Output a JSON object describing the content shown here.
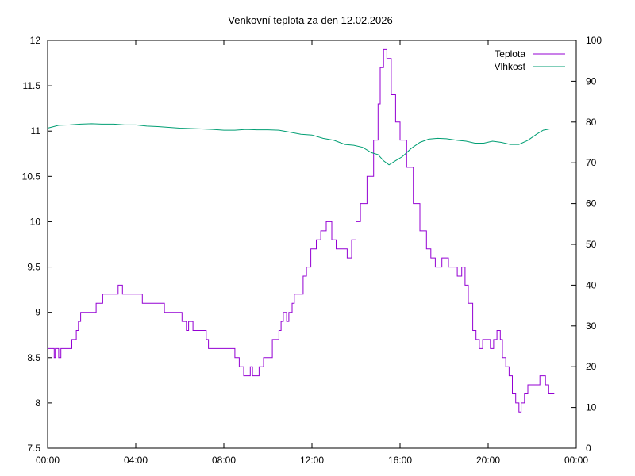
{
  "chart_data": {
    "type": "line",
    "title": "Venkovní teplota za den 12.02.2026",
    "x_axis": {
      "unit": "time of day",
      "range_hours": [
        0,
        24
      ],
      "tick_labels": [
        "00:00",
        "04:00",
        "08:00",
        "12:00",
        "16:00",
        "20:00",
        "00:00"
      ]
    },
    "y_axis_left": {
      "range": [
        7.5,
        12
      ],
      "tick_labels": [
        "7.5",
        "8",
        "8.5",
        "9",
        "9.5",
        "10",
        "10.5",
        "11",
        "11.5",
        "12"
      ]
    },
    "y_axis_right": {
      "range": [
        0,
        100
      ],
      "tick_labels": [
        "0",
        "10",
        "20",
        "30",
        "40",
        "50",
        "60",
        "70",
        "80",
        "90",
        "100"
      ]
    },
    "grid": false,
    "legend_position": "top-right",
    "series": [
      {
        "name": "Teplota",
        "axis": "left",
        "color": "#9400d3",
        "step": true,
        "points": [
          [
            0.0,
            8.6
          ],
          [
            0.3,
            8.5
          ],
          [
            0.35,
            8.6
          ],
          [
            0.5,
            8.5
          ],
          [
            0.6,
            8.6
          ],
          [
            1.1,
            8.7
          ],
          [
            1.3,
            8.8
          ],
          [
            1.4,
            8.9
          ],
          [
            1.5,
            9.0
          ],
          [
            2.2,
            9.1
          ],
          [
            2.5,
            9.2
          ],
          [
            3.2,
            9.3
          ],
          [
            3.4,
            9.2
          ],
          [
            4.3,
            9.1
          ],
          [
            5.3,
            9.0
          ],
          [
            6.1,
            8.9
          ],
          [
            6.3,
            8.8
          ],
          [
            6.4,
            8.9
          ],
          [
            6.6,
            8.8
          ],
          [
            7.2,
            8.7
          ],
          [
            7.3,
            8.6
          ],
          [
            8.5,
            8.5
          ],
          [
            8.7,
            8.4
          ],
          [
            8.9,
            8.3
          ],
          [
            9.2,
            8.4
          ],
          [
            9.3,
            8.3
          ],
          [
            9.6,
            8.4
          ],
          [
            9.8,
            8.5
          ],
          [
            10.2,
            8.7
          ],
          [
            10.5,
            8.8
          ],
          [
            10.6,
            8.9
          ],
          [
            10.7,
            9.0
          ],
          [
            10.85,
            8.9
          ],
          [
            10.95,
            9.0
          ],
          [
            11.1,
            9.1
          ],
          [
            11.2,
            9.2
          ],
          [
            11.6,
            9.4
          ],
          [
            11.75,
            9.5
          ],
          [
            11.95,
            9.7
          ],
          [
            12.2,
            9.8
          ],
          [
            12.4,
            9.9
          ],
          [
            12.65,
            10.0
          ],
          [
            12.9,
            9.8
          ],
          [
            13.1,
            9.7
          ],
          [
            13.6,
            9.6
          ],
          [
            13.8,
            9.8
          ],
          [
            14.0,
            10.0
          ],
          [
            14.2,
            10.2
          ],
          [
            14.5,
            10.5
          ],
          [
            14.8,
            10.9
          ],
          [
            15.0,
            11.3
          ],
          [
            15.1,
            11.7
          ],
          [
            15.25,
            11.9
          ],
          [
            15.4,
            11.8
          ],
          [
            15.6,
            11.4
          ],
          [
            15.8,
            11.1
          ],
          [
            16.0,
            10.9
          ],
          [
            16.3,
            10.6
          ],
          [
            16.6,
            10.2
          ],
          [
            16.9,
            9.9
          ],
          [
            17.2,
            9.7
          ],
          [
            17.4,
            9.6
          ],
          [
            17.6,
            9.5
          ],
          [
            17.9,
            9.6
          ],
          [
            18.2,
            9.5
          ],
          [
            18.6,
            9.4
          ],
          [
            18.8,
            9.5
          ],
          [
            18.95,
            9.3
          ],
          [
            19.1,
            9.1
          ],
          [
            19.3,
            8.8
          ],
          [
            19.45,
            8.7
          ],
          [
            19.6,
            8.6
          ],
          [
            19.75,
            8.7
          ],
          [
            20.1,
            8.6
          ],
          [
            20.25,
            8.7
          ],
          [
            20.4,
            8.8
          ],
          [
            20.55,
            8.7
          ],
          [
            20.65,
            8.5
          ],
          [
            20.8,
            8.4
          ],
          [
            20.95,
            8.3
          ],
          [
            21.1,
            8.1
          ],
          [
            21.25,
            8.0
          ],
          [
            21.4,
            7.9
          ],
          [
            21.5,
            8.0
          ],
          [
            21.65,
            8.1
          ],
          [
            21.8,
            8.2
          ],
          [
            22.2,
            8.2
          ],
          [
            22.35,
            8.3
          ],
          [
            22.6,
            8.2
          ],
          [
            22.75,
            8.1
          ],
          [
            23.0,
            8.1
          ]
        ]
      },
      {
        "name": "Vlhkost",
        "axis": "right",
        "color": "#009e73",
        "step": false,
        "points": [
          [
            0.0,
            78.5
          ],
          [
            0.5,
            79.2
          ],
          [
            1.0,
            79.3
          ],
          [
            1.5,
            79.5
          ],
          [
            2.0,
            79.6
          ],
          [
            2.5,
            79.5
          ],
          [
            3.0,
            79.5
          ],
          [
            3.5,
            79.3
          ],
          [
            4.0,
            79.3
          ],
          [
            4.5,
            79.0
          ],
          [
            5.0,
            78.9
          ],
          [
            5.5,
            78.7
          ],
          [
            6.0,
            78.5
          ],
          [
            6.5,
            78.4
          ],
          [
            7.0,
            78.3
          ],
          [
            7.5,
            78.2
          ],
          [
            8.0,
            78.0
          ],
          [
            8.5,
            78.0
          ],
          [
            9.0,
            78.2
          ],
          [
            9.5,
            78.1
          ],
          [
            10.0,
            78.1
          ],
          [
            10.5,
            78.0
          ],
          [
            11.0,
            77.5
          ],
          [
            11.5,
            77.0
          ],
          [
            12.0,
            76.8
          ],
          [
            12.5,
            76.0
          ],
          [
            13.0,
            75.5
          ],
          [
            13.5,
            74.5
          ],
          [
            13.9,
            74.3
          ],
          [
            14.3,
            73.8
          ],
          [
            14.7,
            72.5
          ],
          [
            15.0,
            72.0
          ],
          [
            15.25,
            70.5
          ],
          [
            15.5,
            69.5
          ],
          [
            15.8,
            70.5
          ],
          [
            16.1,
            71.5
          ],
          [
            16.5,
            73.5
          ],
          [
            16.9,
            75.0
          ],
          [
            17.3,
            75.8
          ],
          [
            17.7,
            76.0
          ],
          [
            18.1,
            75.9
          ],
          [
            18.6,
            75.5
          ],
          [
            19.0,
            75.3
          ],
          [
            19.4,
            74.8
          ],
          [
            19.8,
            74.8
          ],
          [
            20.2,
            75.3
          ],
          [
            20.6,
            75.0
          ],
          [
            21.0,
            74.5
          ],
          [
            21.4,
            74.5
          ],
          [
            21.8,
            75.5
          ],
          [
            22.2,
            77.0
          ],
          [
            22.5,
            78.0
          ],
          [
            22.8,
            78.3
          ],
          [
            23.0,
            78.3
          ]
        ]
      }
    ]
  }
}
